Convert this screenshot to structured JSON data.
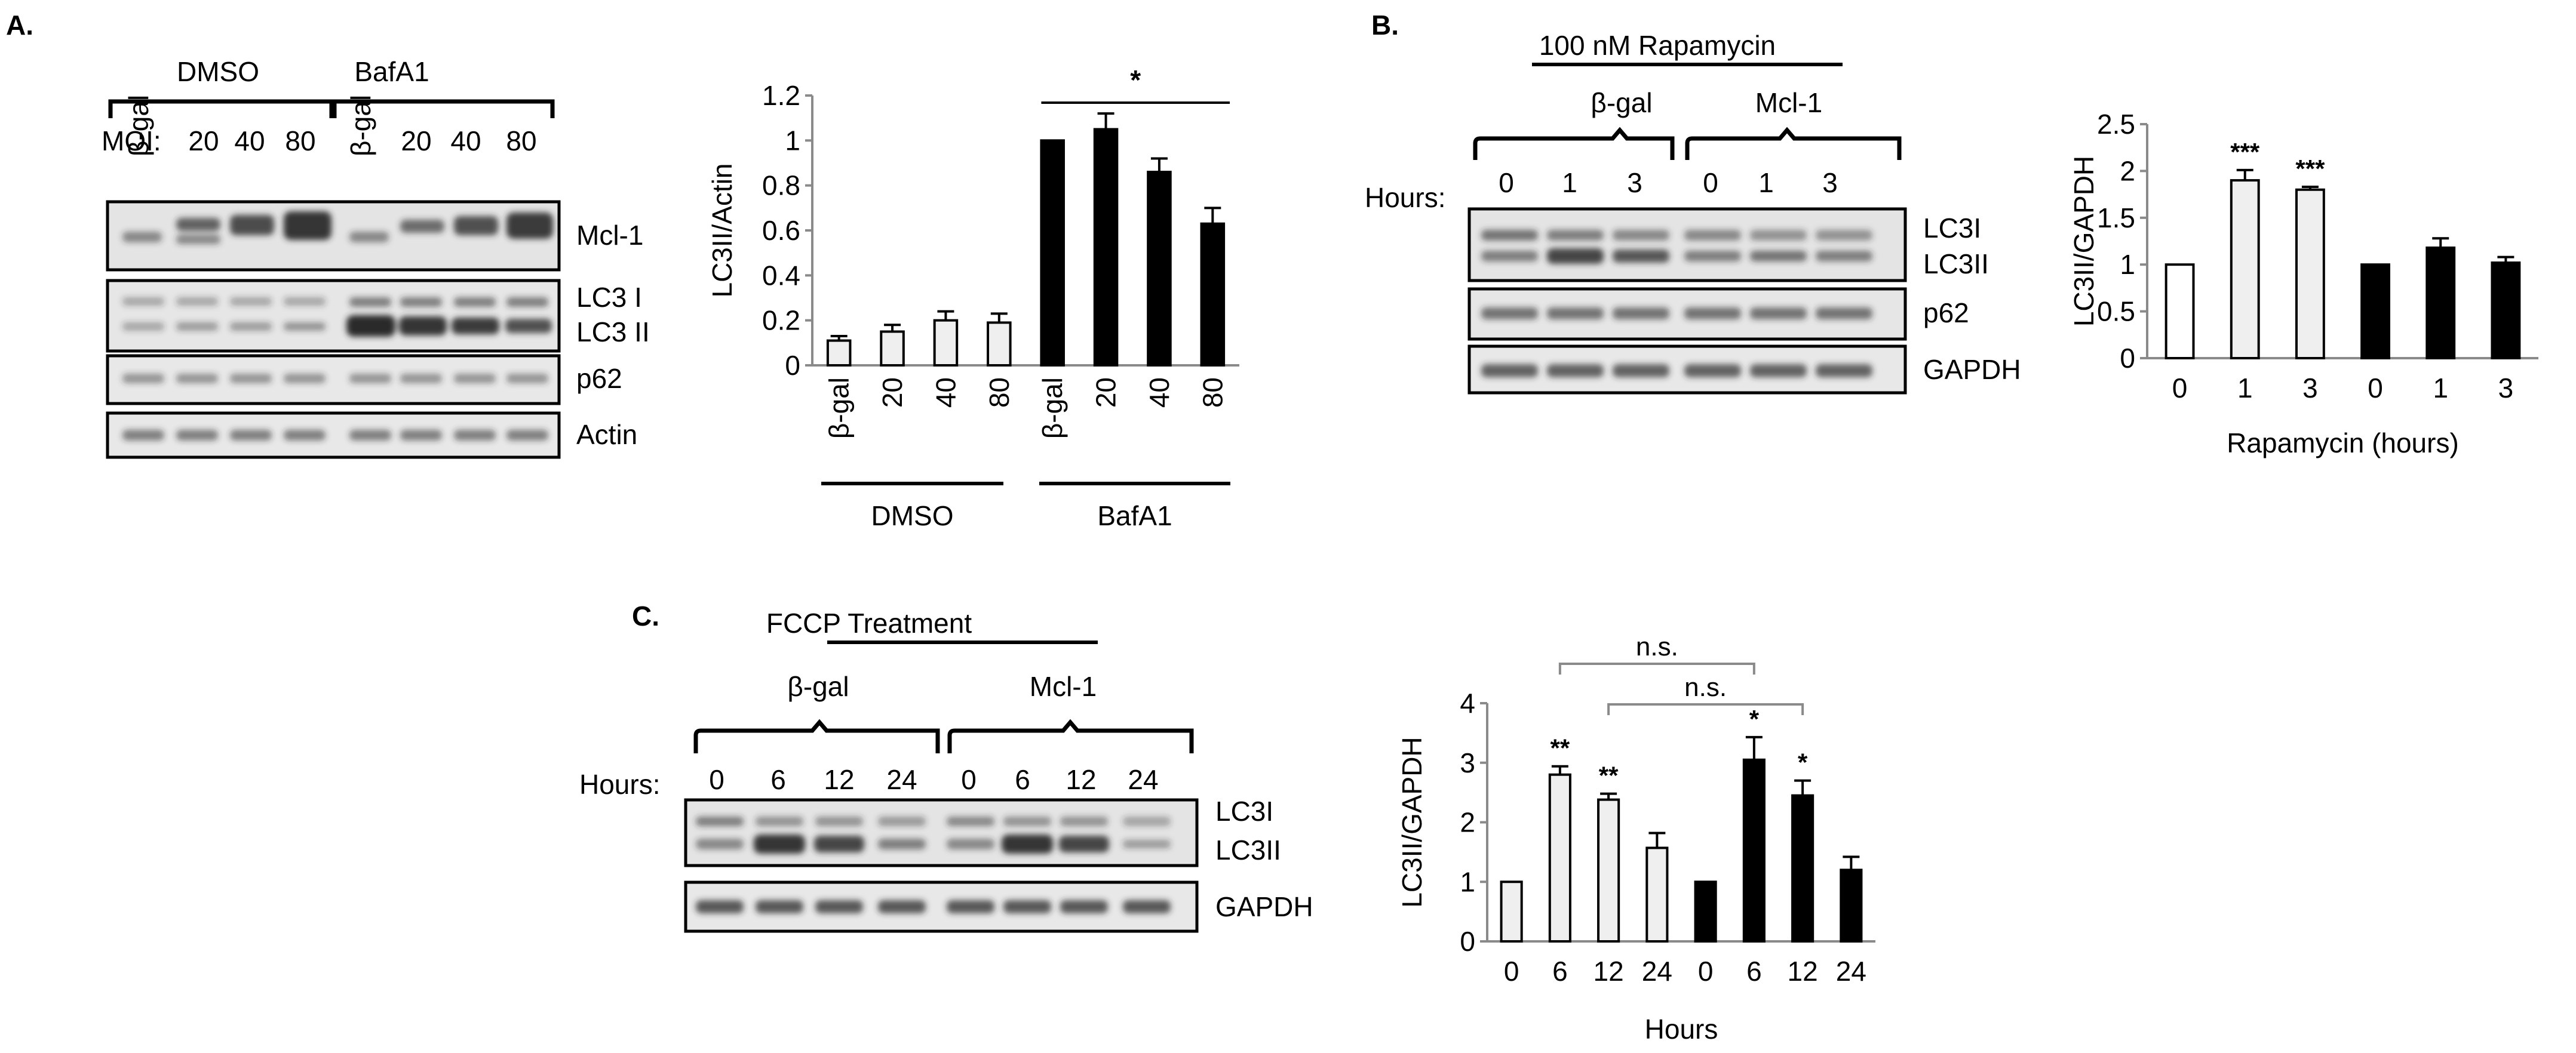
{
  "panel_a": {
    "label": "A.",
    "blot": {
      "group_labels": [
        "DMSO",
        "BafA1"
      ],
      "moi_label": "MOI:",
      "lane_labels": [
        "β-gal",
        "20",
        "40",
        "80",
        "β-gal",
        "20",
        "40",
        "80"
      ],
      "row_labels": [
        "Mcl-1",
        "LC3 I",
        "LC3 II",
        "p62",
        "Actin"
      ]
    }
  },
  "panel_b": {
    "label": "B.",
    "blot": {
      "treatment_title": "100 nM Rapamycin",
      "group_labels": [
        "β-gal",
        "Mcl-1"
      ],
      "hours_label": "Hours:",
      "lane_labels": [
        "0",
        "1",
        "3",
        "0",
        "1",
        "3"
      ],
      "row_labels": [
        "LC3I",
        "LC3II",
        "p62",
        "GAPDH"
      ]
    }
  },
  "panel_c": {
    "label": "C.",
    "blot": {
      "treatment_title": "FCCP Treatment",
      "group_labels": [
        "β-gal",
        "Mcl-1"
      ],
      "hours_label": "Hours:",
      "lane_labels": [
        "0",
        "6",
        "12",
        "24",
        "0",
        "6",
        "12",
        "24"
      ],
      "row_labels": [
        "LC3I",
        "LC3II",
        "GAPDH"
      ]
    }
  },
  "colors": {
    "open_bar": "#ffffff",
    "light_bar": "#efefef",
    "filled_bar": "#000000",
    "axis": "#8a8a8a",
    "ink": "#000000"
  },
  "chart_data": [
    {
      "type": "bar",
      "id": "chart-a",
      "ylabel": "LC3II/Actin",
      "xlabel": "",
      "ylim": [
        0,
        1.2
      ],
      "ytick_labels": [
        "0",
        "0.2",
        "0.4",
        "0.6",
        "0.8",
        "1",
        "1.2"
      ],
      "categories": [
        "β-gal",
        "20",
        "40",
        "80",
        "β-gal",
        "20",
        "40",
        "80"
      ],
      "values": [
        0.11,
        0.15,
        0.2,
        0.19,
        1.0,
        1.05,
        0.86,
        0.63
      ],
      "errors": [
        0.02,
        0.03,
        0.04,
        0.04,
        0.0,
        0.07,
        0.06,
        0.07
      ],
      "fills": [
        "light",
        "light",
        "light",
        "light",
        "black",
        "black",
        "black",
        "black"
      ],
      "group_labels": [
        "DMSO",
        "BafA1"
      ],
      "annotations": [
        {
          "text": "*",
          "from": 4,
          "to": 7
        }
      ]
    },
    {
      "type": "bar",
      "id": "chart-b",
      "ylabel": "LC3II/GAPDH",
      "xlabel": "Rapamycin (hours)",
      "ylim": [
        0,
        2.5
      ],
      "ytick_labels": [
        "0",
        "0.5",
        "1",
        "1.5",
        "2",
        "2.5"
      ],
      "categories": [
        "0",
        "1",
        "3",
        "0",
        "1",
        "3"
      ],
      "values": [
        1.0,
        1.9,
        1.8,
        1.0,
        1.18,
        1.02
      ],
      "errors": [
        0.0,
        0.11,
        0.03,
        0.0,
        0.1,
        0.06
      ],
      "fills": [
        "open",
        "light",
        "light",
        "black",
        "black",
        "black"
      ],
      "stars": [
        "",
        "***",
        "***",
        "",
        "",
        ""
      ]
    },
    {
      "type": "bar",
      "id": "chart-c",
      "ylabel": "LC3II/GAPDH",
      "xlabel": "Hours",
      "ylim": [
        0,
        4
      ],
      "ytick_labels": [
        "0",
        "1",
        "2",
        "3",
        "4"
      ],
      "categories": [
        "0",
        "6",
        "12",
        "24",
        "0",
        "6",
        "12",
        "24"
      ],
      "values": [
        1.0,
        2.8,
        2.38,
        1.57,
        1.0,
        3.05,
        2.45,
        1.2
      ],
      "errors": [
        0.0,
        0.14,
        0.1,
        0.25,
        0.0,
        0.38,
        0.25,
        0.22
      ],
      "fills": [
        "light",
        "light",
        "light",
        "light",
        "black",
        "black",
        "black",
        "black"
      ],
      "stars": [
        "",
        "**",
        "**",
        "",
        "",
        "*",
        "*",
        ""
      ],
      "brackets": [
        {
          "text": "n.s.",
          "from": 1,
          "to": 5
        },
        {
          "text": "n.s.",
          "from": 2,
          "to": 6
        }
      ]
    }
  ]
}
